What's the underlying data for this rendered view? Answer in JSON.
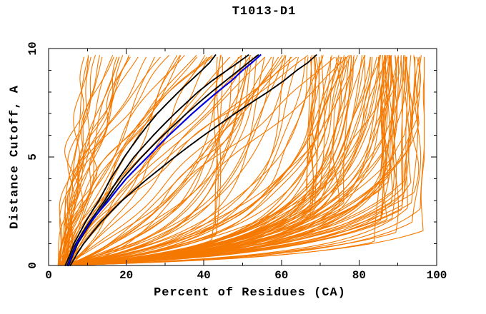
{
  "page": {
    "background": "#ffffff"
  },
  "chart_data": {
    "type": "line",
    "title": "T1013-D1",
    "xlabel": "Percent of Residues (CA)",
    "ylabel": "Distance Cutoff, A",
    "xlim": [
      0,
      100
    ],
    "ylim": [
      0,
      10
    ],
    "x_major_ticks": [
      0,
      20,
      40,
      60,
      80,
      100
    ],
    "x_minor_ticks": [
      10,
      30,
      50,
      70,
      90
    ],
    "y_major_ticks": [
      0,
      5,
      10
    ],
    "y_minor_ticks": [
      1,
      2,
      3,
      4,
      6,
      7,
      8,
      9
    ],
    "grid": "off",
    "legend": "none",
    "border": "box",
    "colors": {
      "ensemble": "#f57900",
      "highlight": "#000000",
      "special": "#0000e0",
      "axis": "#000000"
    },
    "seed": 1013,
    "orange_families": [
      {
        "type": "pow",
        "count": 16,
        "a": [
          8.5,
          22
        ],
        "b": [
          0.8,
          2.0
        ],
        "x0": [
          2.4,
          5.5
        ],
        "amp": [
          0.8,
          2.4
        ]
      },
      {
        "type": "pow",
        "count": 16,
        "a": [
          20,
          45
        ],
        "b": [
          0.7,
          1.9
        ],
        "x0": [
          2.4,
          5.5
        ],
        "amp": [
          0.8,
          2.6
        ]
      },
      {
        "type": "pow",
        "count": 14,
        "a": [
          46,
          78
        ],
        "b": [
          0.5,
          1.3
        ],
        "x0": [
          2.4,
          5.5
        ],
        "amp": [
          0.8,
          2.2
        ]
      },
      {
        "type": "hyp",
        "count": 7,
        "cap": [
          66.5,
          70.5
        ],
        "A": [
          85,
          115
        ],
        "h": [
          0.9,
          1.8
        ],
        "x0": [
          2.4,
          5.0
        ],
        "amp": [
          0.3,
          0.8
        ]
      },
      {
        "type": "hyp",
        "count": 3,
        "cap": [
          42,
          45.5
        ],
        "A": [
          70,
          90
        ],
        "h": [
          0.8,
          1.5
        ],
        "x0": [
          2.4,
          5.0
        ],
        "amp": [
          0.3,
          0.8
        ]
      },
      {
        "type": "hyp",
        "count": 9,
        "cap": [
          72,
          84
        ],
        "A": [
          60,
          110
        ],
        "h": [
          0.8,
          2.2
        ],
        "x0": [
          2.4,
          5.0
        ],
        "amp": [
          0.4,
          1.0
        ]
      },
      {
        "type": "hyp",
        "count": 62,
        "cap": [
          84.5,
          96.5
        ],
        "A": [
          80,
          135
        ],
        "h": [
          0.55,
          1.6
        ],
        "x0": [
          2.2,
          5.0
        ],
        "amp": [
          0.3,
          1.1
        ]
      },
      {
        "type": "hyp",
        "count": 20,
        "cap": [
          85,
          96
        ],
        "A": [
          55,
          110
        ],
        "h": [
          1.6,
          3.2
        ],
        "x0": [
          2.2,
          5.0
        ],
        "amp": [
          0.4,
          1.2
        ]
      }
    ],
    "series": [
      {
        "name": "black-line-1",
        "color": "#000000",
        "width": 1.9,
        "points": [
          [
            4.3,
            0
          ],
          [
            5.5,
            0.5
          ],
          [
            6.5,
            1
          ],
          [
            8,
            1.5
          ],
          [
            9.5,
            2
          ],
          [
            11.2,
            2.5
          ],
          [
            13,
            3
          ],
          [
            14.5,
            3.5
          ],
          [
            16,
            4
          ],
          [
            17.8,
            4.5
          ],
          [
            19.5,
            5
          ],
          [
            21.5,
            5.5
          ],
          [
            23.5,
            6
          ],
          [
            25.7,
            6.5
          ],
          [
            28,
            7
          ],
          [
            30.7,
            7.5
          ],
          [
            33.5,
            8
          ],
          [
            36.5,
            8.5
          ],
          [
            39.5,
            9
          ],
          [
            41.5,
            9.35
          ],
          [
            43,
            9.7
          ]
        ]
      },
      {
        "name": "black-line-2",
        "color": "#000000",
        "width": 1.9,
        "points": [
          [
            4.8,
            0
          ],
          [
            5.9,
            0.5
          ],
          [
            7,
            1
          ],
          [
            8.7,
            1.5
          ],
          [
            10.5,
            2
          ],
          [
            12.5,
            2.5
          ],
          [
            14.5,
            3
          ],
          [
            16.2,
            3.5
          ],
          [
            18,
            4
          ],
          [
            20,
            4.5
          ],
          [
            22,
            5
          ],
          [
            24.5,
            5.5
          ],
          [
            27,
            6
          ],
          [
            29.7,
            6.5
          ],
          [
            32.5,
            7
          ],
          [
            35.5,
            7.5
          ],
          [
            38.5,
            8
          ],
          [
            42,
            8.5
          ],
          [
            46,
            9
          ],
          [
            48.8,
            9.35
          ],
          [
            51.5,
            9.7
          ]
        ]
      },
      {
        "name": "black-line-3",
        "color": "#000000",
        "width": 1.9,
        "points": [
          [
            5.2,
            0
          ],
          [
            6.3,
            0.5
          ],
          [
            7.5,
            1
          ],
          [
            9.2,
            1.5
          ],
          [
            11,
            2
          ],
          [
            13,
            2.5
          ],
          [
            15,
            3
          ],
          [
            17,
            3.5
          ],
          [
            19,
            4
          ],
          [
            21.5,
            4.5
          ],
          [
            24,
            5
          ],
          [
            26.7,
            5.5
          ],
          [
            29.5,
            6
          ],
          [
            32.5,
            6.5
          ],
          [
            35.5,
            7
          ],
          [
            38.7,
            7.5
          ],
          [
            42,
            8
          ],
          [
            45.5,
            8.5
          ],
          [
            49,
            9
          ],
          [
            51.5,
            9.35
          ],
          [
            54,
            9.7
          ]
        ]
      },
      {
        "name": "black-line-4",
        "color": "#000000",
        "width": 1.9,
        "points": [
          [
            5.6,
            0
          ],
          [
            7.2,
            0.5
          ],
          [
            9,
            1
          ],
          [
            11.2,
            1.5
          ],
          [
            13.5,
            2
          ],
          [
            16.2,
            2.5
          ],
          [
            19,
            3
          ],
          [
            22.2,
            3.5
          ],
          [
            25.5,
            4
          ],
          [
            29,
            4.5
          ],
          [
            32.5,
            5
          ],
          [
            36.2,
            5.5
          ],
          [
            40,
            6
          ],
          [
            44,
            6.5
          ],
          [
            48,
            7
          ],
          [
            52.2,
            7.5
          ],
          [
            56.5,
            8
          ],
          [
            60.5,
            8.5
          ],
          [
            64,
            9
          ],
          [
            66.8,
            9.35
          ],
          [
            69,
            9.7
          ]
        ]
      },
      {
        "name": "blue-line",
        "color": "#0000e0",
        "width": 2.2,
        "points": [
          [
            5,
            0
          ],
          [
            6.1,
            0.5
          ],
          [
            7.2,
            1
          ],
          [
            9,
            1.5
          ],
          [
            10.8,
            2
          ],
          [
            13.1,
            2.5
          ],
          [
            15.5,
            3
          ],
          [
            17.7,
            3.5
          ],
          [
            20,
            4
          ],
          [
            22.7,
            4.5
          ],
          [
            25.5,
            5
          ],
          [
            28.2,
            5.5
          ],
          [
            31,
            6
          ],
          [
            34,
            6.5
          ],
          [
            37,
            7
          ],
          [
            40.2,
            7.5
          ],
          [
            43.5,
            8
          ],
          [
            47,
            8.5
          ],
          [
            50,
            9
          ],
          [
            52.4,
            9.35
          ],
          [
            54.6,
            9.7
          ]
        ]
      }
    ]
  }
}
